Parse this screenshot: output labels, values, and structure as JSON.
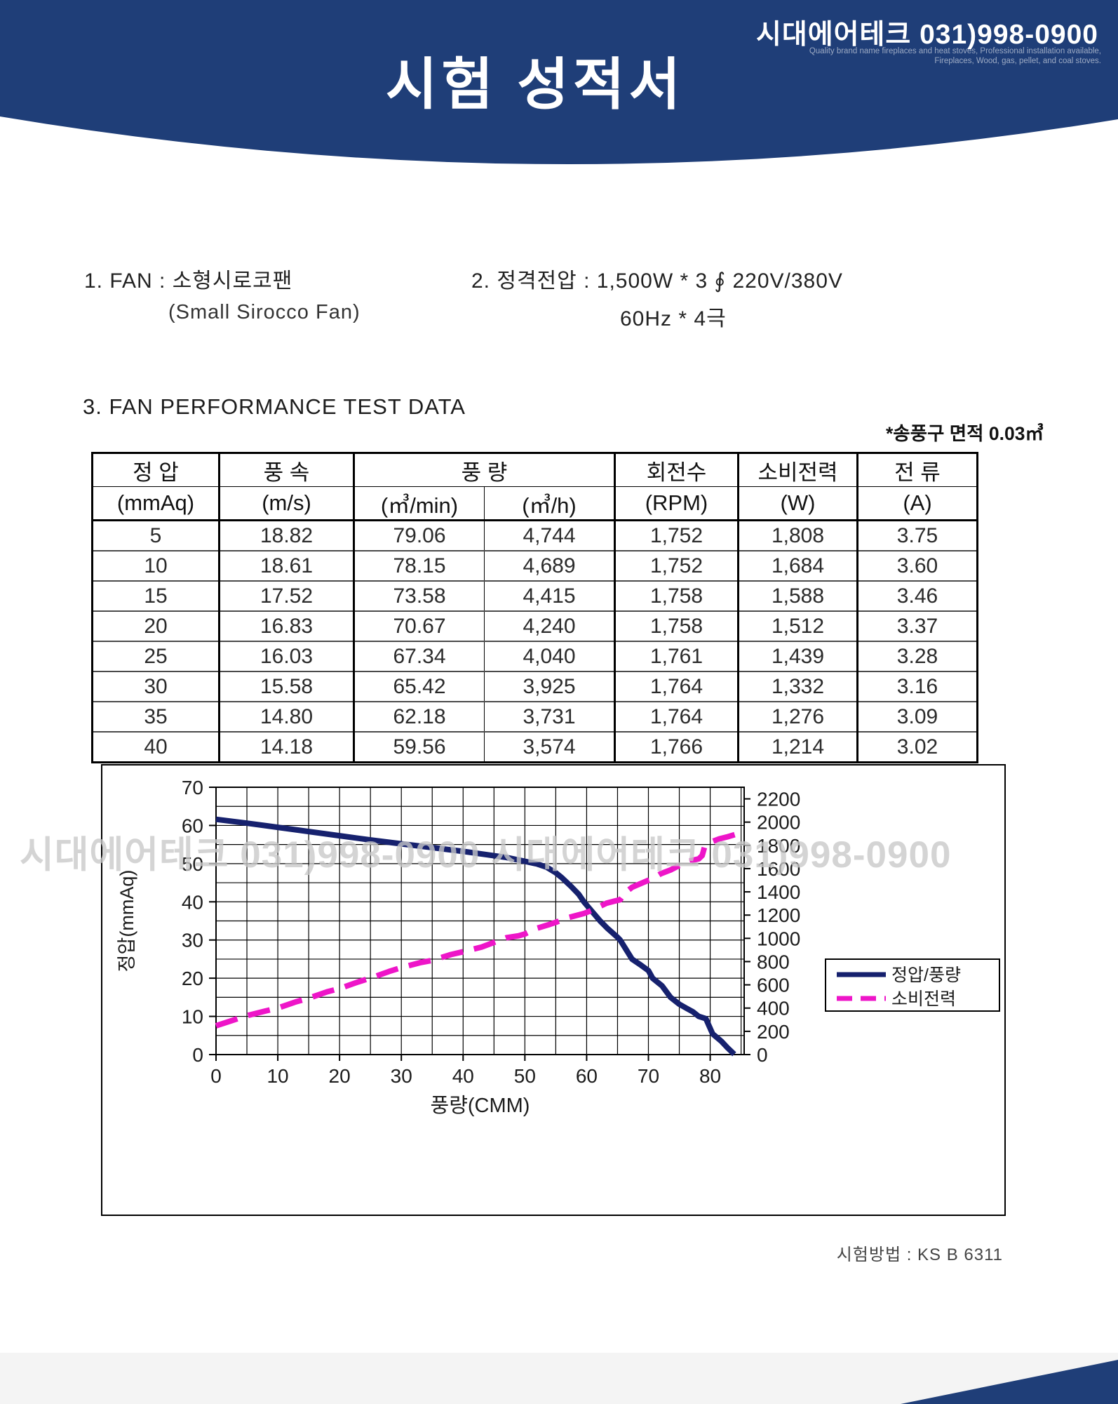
{
  "header": {
    "company": "시대에어테크 031)998-0900",
    "tagline1": "Quality brand name fireplaces and heat stoves, Professional installation available,",
    "tagline2": "Fireplaces, Wood, gas, pellet, and coal stoves.",
    "title": "시험 성적서",
    "bg_color": "#1f3e78"
  },
  "info": {
    "item1": "1. FAN  :  소형시로코팬",
    "item1_sub": "(Small  Sirocco  Fan)",
    "item2": "2. 정격전압  :  1,500W  *  3 ∮ 220V/380V",
    "item2_sub": "60Hz   *   4극"
  },
  "section3": {
    "title": "3. FAN  PERFORMANCE  TEST  DATA",
    "note": "*송풍구  면적  0.03㎥"
  },
  "table": {
    "groups": [
      "정   압",
      "풍   속",
      "풍   량",
      "회전수",
      "소비전력",
      "전   류"
    ],
    "units": [
      "(mmAq)",
      "(m/s)",
      "(㎥/min)",
      "(㎥/h)",
      "(RPM)",
      "(W)",
      "(A)"
    ],
    "rows": [
      [
        "5",
        "18.82",
        "79.06",
        "4,744",
        "1,752",
        "1,808",
        "3.75"
      ],
      [
        "10",
        "18.61",
        "78.15",
        "4,689",
        "1,752",
        "1,684",
        "3.60"
      ],
      [
        "15",
        "17.52",
        "73.58",
        "4,415",
        "1,758",
        "1,588",
        "3.46"
      ],
      [
        "20",
        "16.83",
        "70.67",
        "4,240",
        "1,758",
        "1,512",
        "3.37"
      ],
      [
        "25",
        "16.03",
        "67.34",
        "4,040",
        "1,761",
        "1,439",
        "3.28"
      ],
      [
        "30",
        "15.58",
        "65.42",
        "3,925",
        "1,764",
        "1,332",
        "3.16"
      ],
      [
        "35",
        "14.80",
        "62.18",
        "3,731",
        "1,764",
        "1,276",
        "3.09"
      ],
      [
        "40",
        "14.18",
        "59.56",
        "3,574",
        "1,766",
        "1,214",
        "3.02"
      ]
    ]
  },
  "chart_data": {
    "type": "line",
    "x_label": "풍량(CMM)",
    "y_left_label": "정압(mmAq)",
    "x_ticks": [
      0,
      10,
      20,
      30,
      40,
      50,
      60,
      70,
      80
    ],
    "x_range": [
      0,
      85.5
    ],
    "grid_step_x": 5,
    "y_left_ticks": [
      0,
      10,
      20,
      30,
      40,
      50,
      60,
      70
    ],
    "y_left_range": [
      0,
      70
    ],
    "grid_step_y": 5,
    "y_right_ticks": [
      0,
      200,
      400,
      600,
      800,
      1000,
      1200,
      1400,
      1600,
      1800,
      2000,
      2200
    ],
    "y_right_range": [
      0,
      2300
    ],
    "grid_on": true,
    "legend_position": "right-middle",
    "series": [
      {
        "name": "정압/풍량",
        "axis": "left",
        "style": "solid",
        "color": "#16216e",
        "points": [
          [
            0,
            61.6
          ],
          [
            5,
            60.6
          ],
          [
            10,
            59.5
          ],
          [
            15,
            58.4
          ],
          [
            20,
            57.3
          ],
          [
            25,
            56.2
          ],
          [
            30,
            55.2
          ],
          [
            35,
            54.2
          ],
          [
            40,
            53.2
          ],
          [
            44,
            52.3
          ],
          [
            47,
            51.6
          ],
          [
            50,
            50.6
          ],
          [
            52,
            49.9
          ],
          [
            53.5,
            49.1
          ],
          [
            55,
            47.6
          ],
          [
            56,
            46.3
          ],
          [
            57.5,
            44
          ],
          [
            58.7,
            42
          ],
          [
            59.56,
            40
          ],
          [
            60.8,
            37.6
          ],
          [
            62.18,
            35
          ],
          [
            63.4,
            33
          ],
          [
            65,
            30.7
          ],
          [
            65.42,
            30
          ],
          [
            66.2,
            28
          ],
          [
            67.34,
            25
          ],
          [
            68.8,
            23.4
          ],
          [
            70,
            22
          ],
          [
            70.67,
            20
          ],
          [
            72.2,
            18
          ],
          [
            73.58,
            15
          ],
          [
            75,
            13.2
          ],
          [
            76.3,
            12
          ],
          [
            77.2,
            11.2
          ],
          [
            78.15,
            10
          ],
          [
            79.3,
            9.4
          ],
          [
            79.9,
            7.2
          ],
          [
            80.4,
            5.4
          ],
          [
            81,
            4.6
          ],
          [
            81.8,
            3.5
          ],
          [
            82.8,
            1.8
          ],
          [
            83.9,
            0.1
          ]
        ]
      },
      {
        "name": "소비전력",
        "axis": "right",
        "style": "dashed",
        "color": "#ee15c8",
        "points": [
          [
            0,
            248
          ],
          [
            3,
            300
          ],
          [
            5,
            335
          ],
          [
            8,
            375
          ],
          [
            10,
            400
          ],
          [
            13,
            455
          ],
          [
            15,
            485
          ],
          [
            18,
            540
          ],
          [
            20,
            568
          ],
          [
            23,
            625
          ],
          [
            25,
            658
          ],
          [
            28,
            715
          ],
          [
            30,
            748
          ],
          [
            33,
            790
          ],
          [
            35,
            810
          ],
          [
            38,
            860
          ],
          [
            40,
            885
          ],
          [
            43,
            925
          ],
          [
            45,
            965
          ],
          [
            47,
            1005
          ],
          [
            49,
            1022
          ],
          [
            50,
            1038
          ],
          [
            52,
            1088
          ],
          [
            54,
            1120
          ],
          [
            55,
            1138
          ],
          [
            57,
            1178
          ],
          [
            59.56,
            1214
          ],
          [
            61,
            1245
          ],
          [
            62.18,
            1276
          ],
          [
            63.2,
            1302
          ],
          [
            64.3,
            1318
          ],
          [
            65.42,
            1332
          ],
          [
            66.3,
            1395
          ],
          [
            67.34,
            1439
          ],
          [
            68.6,
            1468
          ],
          [
            69.8,
            1495
          ],
          [
            70.67,
            1512
          ],
          [
            72,
            1556
          ],
          [
            73.58,
            1588
          ],
          [
            74.8,
            1622
          ],
          [
            76,
            1652
          ],
          [
            77.2,
            1672
          ],
          [
            78.15,
            1684
          ],
          [
            78.7,
            1712
          ],
          [
            79.1,
            1788
          ],
          [
            79.6,
            1812
          ],
          [
            80.3,
            1832
          ],
          [
            81.5,
            1856
          ],
          [
            82.7,
            1872
          ],
          [
            84.2,
            1896
          ]
        ]
      }
    ]
  },
  "watermark": "시대에어테크 031)998-0900 시대에어테크 031)998-0900",
  "footer": {
    "method": "시험방법 : KS B 6311"
  }
}
